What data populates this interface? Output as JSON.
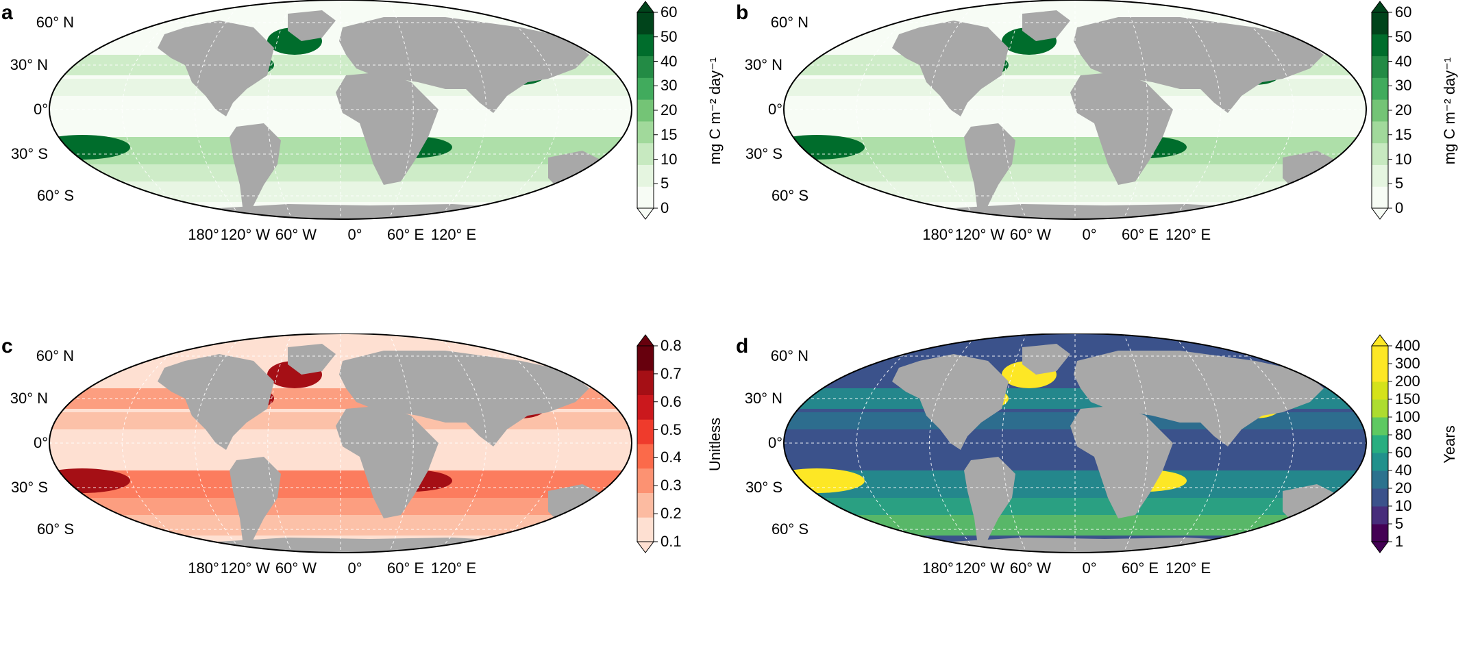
{
  "panels": [
    {
      "letter": "a",
      "colorbar": {
        "label": "mg C m⁻² day⁻¹",
        "ticks": [
          "0",
          "5",
          "10",
          "15",
          "20",
          "30",
          "40",
          "50",
          "60"
        ],
        "colors": [
          "#f7fcf5",
          "#e5f5e0",
          "#c7e9c0",
          "#a1d99b",
          "#74c476",
          "#41ab5d",
          "#238b45",
          "#006d2c",
          "#00441b"
        ]
      }
    },
    {
      "letter": "b",
      "colorbar": {
        "label": "mg C m⁻² day⁻¹",
        "ticks": [
          "0",
          "5",
          "10",
          "15",
          "20",
          "30",
          "40",
          "50",
          "60"
        ],
        "colors": [
          "#f7fcf5",
          "#e5f5e0",
          "#c7e9c0",
          "#a1d99b",
          "#74c476",
          "#41ab5d",
          "#238b45",
          "#006d2c",
          "#00441b"
        ]
      }
    },
    {
      "letter": "c",
      "colorbar": {
        "label": "Unitless",
        "ticks": [
          "0.1",
          "0.2",
          "0.3",
          "0.4",
          "0.5",
          "0.6",
          "0.7",
          "0.8"
        ],
        "colors": [
          "#fee0d2",
          "#fcbba1",
          "#fc9272",
          "#fb6a4a",
          "#ef3b2c",
          "#cb181d",
          "#a50f15",
          "#67000d"
        ]
      }
    },
    {
      "letter": "d",
      "colorbar": {
        "label": "Years",
        "ticks": [
          "1",
          "5",
          "10",
          "20",
          "40",
          "60",
          "80",
          "100",
          "150",
          "200",
          "300",
          "400"
        ],
        "colors": [
          "#440154",
          "#472d7b",
          "#3b528b",
          "#2c728e",
          "#21918c",
          "#28ae80",
          "#5ec962",
          "#addc30",
          "#d5e21a",
          "#fde725",
          "#fde725"
        ]
      }
    }
  ],
  "axes": {
    "lat_labels": [
      "60° N",
      "30° N",
      "0°",
      "30° S",
      "60° S"
    ],
    "lon_labels": [
      "180°",
      "120° W",
      "60° W",
      "0°",
      "60° E",
      "120° E"
    ]
  },
  "colors": {
    "land": "#a8a8a8",
    "gridlines": "#ffffff"
  }
}
